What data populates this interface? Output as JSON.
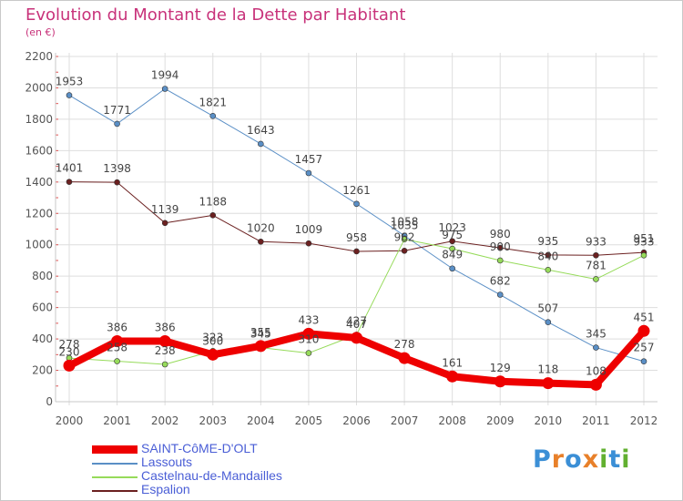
{
  "header": {
    "title": "Evolution du Montant de la Dette par Habitant",
    "subtitle": "(en €)"
  },
  "logo": {
    "text": "Proxiti",
    "letters": [
      "P",
      "r",
      "o",
      "x",
      "i",
      "t",
      "i"
    ],
    "colors": [
      "#3b8fd6",
      "#e8802a",
      "#3b8fd6",
      "#e8802a",
      "#62b030",
      "#3b8fd6",
      "#62b030"
    ]
  },
  "chart_data": {
    "type": "line",
    "title": "Evolution du Montant de la Dette par Habitant",
    "subtitle": "(en €)",
    "xlabel": "",
    "ylabel": "",
    "x": [
      "2000",
      "2001",
      "2002",
      "2003",
      "2004",
      "2005",
      "2006",
      "2007",
      "2008",
      "2009",
      "2010",
      "2011",
      "2012"
    ],
    "ylim": [
      0,
      2200
    ],
    "yticks": [
      0,
      200,
      400,
      600,
      800,
      1000,
      1200,
      1400,
      1600,
      1800,
      2000,
      2200
    ],
    "grid": true,
    "legend_position": "bottom-left",
    "series": [
      {
        "name": "Lassouts",
        "color": "#5a8fc6",
        "emphasis": false,
        "values": [
          1953,
          1771,
          1994,
          1821,
          1643,
          1457,
          1261,
          1058,
          849,
          682,
          507,
          345,
          257
        ]
      },
      {
        "name": "Espalion",
        "color": "#6b2020",
        "emphasis": false,
        "values": [
          1401,
          1398,
          1139,
          1188,
          1020,
          1009,
          958,
          962,
          1023,
          980,
          935,
          933,
          951
        ]
      },
      {
        "name": "Castelnau-de-Mandailles",
        "color": "#96db5a",
        "emphasis": false,
        "values": [
          278,
          258,
          238,
          323,
          345,
          310,
          427,
          1035,
          975,
          900,
          840,
          781,
          933
        ]
      },
      {
        "name": "SAINT-CôME-D'OLT",
        "color": "#ee0000",
        "emphasis": true,
        "values": [
          230,
          386,
          386,
          300,
          355,
          433,
          407,
          278,
          161,
          129,
          118,
          108,
          451
        ]
      }
    ],
    "legend_order": [
      "SAINT-CôME-D'OLT",
      "Lassouts",
      "Castelnau-de-Mandailles",
      "Espalion"
    ]
  }
}
